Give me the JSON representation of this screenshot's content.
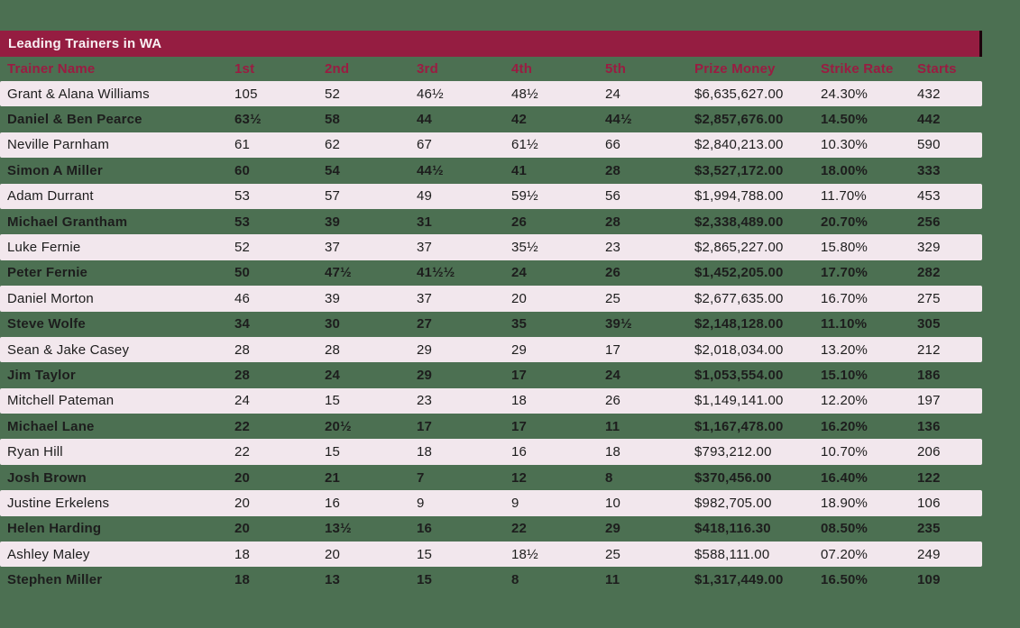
{
  "title": "Leading Trainers in WA",
  "colors": {
    "background_green": "#4c7052",
    "title_bar_maroon": "#951d41",
    "title_bar_edge": "#1c030c",
    "title_text": "#f8f0f3",
    "header_text_crimson": "#9a1c42",
    "row_pink": "#f2e7ed",
    "data_text": "#1d1d1d"
  },
  "chart_data": {
    "type": "table",
    "title": "Leading Trainers in WA",
    "columns": [
      "Trainer Name",
      "1st",
      "2nd",
      "3rd",
      "4th",
      "5th",
      "Prize Money",
      "Strike Rate",
      "Starts"
    ],
    "rows": [
      [
        "Grant & Alana Williams",
        "105",
        "52",
        "46½",
        "48½",
        "24",
        "$6,635,627.00",
        "24.30%",
        "432"
      ],
      [
        "Daniel & Ben Pearce",
        "63½",
        "58",
        "44",
        "42",
        "44½",
        "$2,857,676.00",
        "14.50%",
        "442"
      ],
      [
        "Neville Parnham",
        "61",
        "62",
        "67",
        "61½",
        "66",
        "$2,840,213.00",
        "10.30%",
        "590"
      ],
      [
        "Simon A Miller",
        "60",
        "54",
        "44½",
        "41",
        "28",
        "$3,527,172.00",
        "18.00%",
        "333"
      ],
      [
        "Adam Durrant",
        "53",
        "57",
        "49",
        "59½",
        "56",
        "$1,994,788.00",
        "11.70%",
        "453"
      ],
      [
        "Michael Grantham",
        "53",
        "39",
        "31",
        "26",
        "28",
        "$2,338,489.00",
        "20.70%",
        "256"
      ],
      [
        "Luke Fernie",
        "52",
        "37",
        "37",
        "35½",
        "23",
        "$2,865,227.00",
        "15.80%",
        "329"
      ],
      [
        "Peter Fernie",
        "50",
        "47½",
        "41½½",
        "24",
        "26",
        "$1,452,205.00",
        "17.70%",
        "282"
      ],
      [
        "Daniel Morton",
        "46",
        "39",
        "37",
        "20",
        "25",
        "$2,677,635.00",
        "16.70%",
        "275"
      ],
      [
        "Steve Wolfe",
        "34",
        "30",
        "27",
        "35",
        "39½",
        "$2,148,128.00",
        "11.10%",
        "305"
      ],
      [
        "Sean & Jake Casey",
        "28",
        "28",
        "29",
        "29",
        "17",
        "$2,018,034.00",
        "13.20%",
        "212"
      ],
      [
        "Jim Taylor",
        "28",
        "24",
        "29",
        "17",
        "24",
        "$1,053,554.00",
        "15.10%",
        "186"
      ],
      [
        "Mitchell Pateman",
        "24",
        "15",
        "23",
        "18",
        "26",
        "$1,149,141.00",
        "12.20%",
        "197"
      ],
      [
        "Michael Lane",
        "22",
        "20½",
        "17",
        "17",
        "11",
        "$1,167,478.00",
        "16.20%",
        "136"
      ],
      [
        "Ryan Hill",
        "22",
        "15",
        "18",
        "16",
        "18",
        "$793,212.00",
        "10.70%",
        "206"
      ],
      [
        "Josh Brown",
        "20",
        "21",
        "7",
        "12",
        "8",
        "$370,456.00",
        "16.40%",
        "122"
      ],
      [
        "Justine Erkelens",
        "20",
        "16",
        "9",
        "9",
        "10",
        "$982,705.00",
        "18.90%",
        "106"
      ],
      [
        "Helen Harding",
        "20",
        "13½",
        "16",
        "22",
        "29",
        "$418,116.30",
        "08.50%",
        "235"
      ],
      [
        "Ashley Maley",
        "18",
        "20",
        "15",
        "18½",
        "25",
        "$588,111.00",
        "07.20%",
        "249"
      ],
      [
        "Stephen Miller",
        "18",
        "13",
        "15",
        "8",
        "11",
        "$1,317,449.00",
        "16.50%",
        "109"
      ]
    ]
  }
}
